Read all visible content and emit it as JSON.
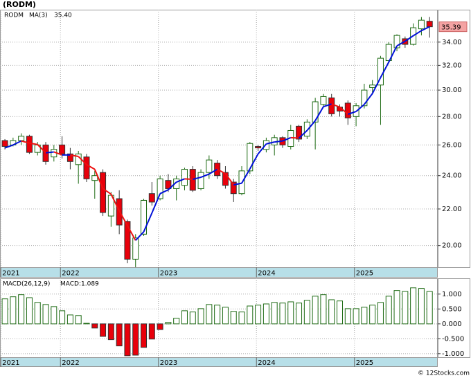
{
  "title": "(RODM)",
  "footer": "© 12Stocks.com",
  "chart_data": [
    {
      "type": "candlestick",
      "name": "RODM",
      "name_color": "#1a7a1a",
      "open": [
        26.3,
        26.0,
        26.3,
        26.6,
        25.5,
        26.0,
        25.2,
        26.0,
        25.4,
        24.7,
        25.2,
        23.7,
        24.2,
        21.6,
        22.6,
        21.3,
        19.3,
        20.6,
        22.9,
        22.6,
        23.7,
        23.2,
        23.4,
        24.4,
        23.2,
        24.2,
        24.8,
        24.2,
        23.6,
        22.9,
        24.3,
        25.9,
        25.7,
        26.0,
        26.5,
        25.9,
        27.3,
        26.6,
        27.6,
        28.9,
        29.4,
        28.7,
        29.0,
        28.0,
        28.8,
        30.2,
        30.4,
        32.4,
        33.5,
        34.3,
        33.8,
        35.2,
        35.9
      ],
      "high": [
        26.4,
        26.5,
        26.8,
        26.7,
        26.2,
        26.2,
        26.0,
        26.6,
        25.8,
        25.6,
        25.4,
        24.3,
        24.4,
        23.0,
        23.1,
        21.4,
        20.6,
        22.6,
        23.6,
        24.0,
        24.1,
        24.0,
        24.5,
        24.6,
        24.4,
        25.3,
        25.0,
        24.6,
        23.8,
        24.6,
        26.2,
        26.0,
        26.5,
        26.7,
        26.6,
        27.4,
        27.4,
        27.8,
        29.4,
        29.7,
        29.7,
        28.9,
        29.2,
        29.0,
        30.5,
        30.8,
        32.8,
        34.0,
        34.7,
        34.5,
        35.7,
        36.3,
        36.3
      ],
      "low": [
        25.7,
        25.9,
        26.0,
        25.4,
        25.3,
        24.7,
        24.9,
        25.1,
        24.4,
        23.5,
        23.6,
        22.6,
        21.6,
        21.0,
        20.6,
        19.1,
        18.9,
        20.5,
        22.2,
        22.5,
        23.0,
        22.5,
        23.1,
        23.0,
        23.1,
        23.8,
        23.8,
        23.2,
        22.4,
        22.8,
        24.1,
        25.6,
        25.5,
        25.3,
        25.8,
        25.7,
        26.2,
        26.4,
        25.7,
        28.7,
        28.0,
        28.0,
        27.4,
        27.3,
        28.6,
        29.8,
        27.4,
        32.2,
        33.2,
        33.5,
        33.7,
        34.6,
        34.4
      ],
      "close": [
        25.9,
        26.3,
        26.6,
        25.5,
        26.0,
        24.9,
        25.7,
        25.4,
        24.9,
        25.4,
        23.8,
        24.0,
        21.8,
        22.8,
        21.1,
        19.3,
        20.4,
        22.5,
        22.4,
        23.8,
        23.2,
        23.8,
        24.4,
        23.1,
        24.2,
        25.0,
        24.0,
        23.4,
        22.9,
        24.3,
        26.1,
        25.8,
        26.3,
        26.5,
        26.0,
        27.0,
        26.4,
        27.6,
        29.1,
        29.5,
        28.2,
        28.4,
        27.9,
        28.8,
        30.0,
        30.4,
        32.6,
        33.8,
        34.6,
        33.8,
        35.3,
        36.0,
        35.39
      ],
      "up_color": "#1e6b14",
      "down_color": "#e8000b",
      "tag_color": "#f4a3a3",
      "overlay": {
        "name": "MA(3)",
        "color": "#0010d8",
        "fall_color": "#ee1010",
        "last_label": "35.40",
        "values": [
          25.8,
          26.0,
          26.27,
          26.13,
          26.03,
          25.47,
          25.53,
          25.33,
          25.33,
          25.23,
          24.7,
          24.4,
          23.2,
          22.87,
          21.9,
          21.07,
          20.27,
          20.73,
          21.77,
          22.9,
          23.13,
          23.6,
          23.8,
          23.77,
          23.9,
          24.1,
          24.4,
          24.13,
          23.43,
          23.53,
          24.43,
          25.4,
          26.07,
          26.2,
          26.27,
          26.5,
          26.47,
          27.0,
          27.7,
          28.73,
          28.93,
          28.7,
          28.17,
          28.37,
          28.9,
          29.73,
          31.0,
          32.27,
          33.67,
          34.07,
          34.57,
          35.03,
          35.4
        ]
      },
      "xlim": [
        -0.6,
        53
      ],
      "xticks": [
        {
          "value": -0.5,
          "label": "2021"
        },
        {
          "value": 6.8,
          "label": "2022"
        },
        {
          "value": 18.8,
          "label": "2023"
        },
        {
          "value": 30.8,
          "label": "2024"
        },
        {
          "value": 42.8,
          "label": "2025"
        }
      ],
      "ylim": [
        18.9,
        37
      ],
      "log_scale": true,
      "grid": true,
      "yticks": [
        {
          "value": 20,
          "label": "20.00"
        },
        {
          "value": 22,
          "label": "22.00"
        },
        {
          "value": 24,
          "label": "24.00"
        },
        {
          "value": 26,
          "label": "26.00"
        },
        {
          "value": 28,
          "label": "28.00"
        },
        {
          "value": 30,
          "label": "30.00"
        },
        {
          "value": 32,
          "label": "32.00"
        },
        {
          "value": 34,
          "label": "34.00"
        }
      ]
    },
    {
      "type": "bar",
      "title": "MACD(26,12,9)",
      "label": "MACD:1.089",
      "label_color": "#0010d8",
      "values": [
        0.84,
        0.91,
        0.98,
        0.88,
        0.72,
        0.65,
        0.58,
        0.44,
        0.3,
        0.28,
        0.02,
        -0.14,
        -0.42,
        -0.53,
        -0.74,
        -1.07,
        -1.05,
        -0.79,
        -0.51,
        -0.19,
        0.05,
        0.19,
        0.44,
        0.4,
        0.51,
        0.65,
        0.63,
        0.56,
        0.42,
        0.4,
        0.6,
        0.63,
        0.67,
        0.72,
        0.7,
        0.74,
        0.7,
        0.79,
        0.93,
        0.98,
        0.81,
        0.77,
        0.51,
        0.51,
        0.56,
        0.63,
        0.72,
        0.93,
        1.12,
        1.09,
        1.21,
        1.19,
        1.089
      ],
      "up_color": "#1e6b14",
      "down_color": "#e8000b",
      "xlim": [
        -0.6,
        53
      ],
      "xticks": [
        {
          "value": -0.5,
          "label": "2021"
        },
        {
          "value": 6.8,
          "label": "2022"
        },
        {
          "value": 18.8,
          "label": "2023"
        },
        {
          "value": 30.8,
          "label": "2024"
        },
        {
          "value": 42.8,
          "label": "2025"
        }
      ],
      "ylim": [
        -1.12,
        1.53
      ],
      "grid": true,
      "yticks": [
        {
          "value": -1,
          "label": "-1.000"
        },
        {
          "value": -0.5,
          "label": "-0.500"
        },
        {
          "value": 0,
          "label": "0.000"
        },
        {
          "value": 0.5,
          "label": "0.500"
        },
        {
          "value": 1,
          "label": "1.000"
        }
      ]
    }
  ]
}
